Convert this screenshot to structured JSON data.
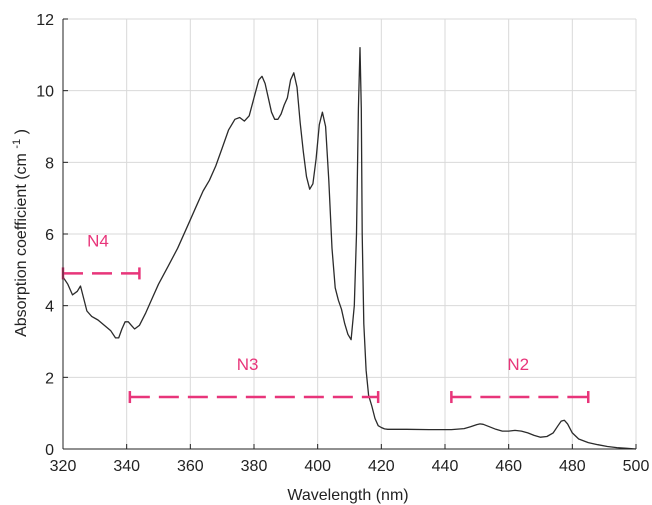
{
  "chart_data": {
    "type": "line",
    "title": "",
    "xlabel": "Wavelength (nm)",
    "ylabel_parts": {
      "main": "Absorption coefficient (cm",
      "sup": "-1",
      "close": ")"
    },
    "xlim": [
      320,
      500
    ],
    "ylim": [
      0,
      12
    ],
    "xticks": [
      320,
      340,
      360,
      380,
      400,
      420,
      440,
      460,
      480,
      500
    ],
    "yticks": [
      0,
      2,
      4,
      6,
      8,
      10,
      12
    ],
    "xtick_labels": [
      "320",
      "340",
      "360",
      "380",
      "400",
      "420",
      "440",
      "460",
      "480",
      "500"
    ],
    "ytick_labels": [
      "0",
      "2",
      "4",
      "6",
      "8",
      "10",
      "12"
    ],
    "grid": true,
    "colors": {
      "curve": "#2b2b2b",
      "annotation": "#e8357a",
      "grid": "#d9d9d9",
      "axis": "#222222"
    },
    "series": [
      {
        "x": [
          320,
          321.5,
          323,
          324.5,
          325.5,
          326.5,
          327.5,
          329,
          331,
          333,
          335,
          336.5,
          337.5,
          338.5,
          339.5,
          340.5,
          341.5,
          342.5,
          344,
          346,
          348,
          350,
          353,
          356,
          359,
          362,
          364,
          366,
          368,
          370,
          372,
          374,
          375.5,
          377,
          378.5,
          380,
          381.5,
          382.5,
          383.5,
          384.5,
          385.5,
          386.5,
          387.5,
          388.5,
          389.5,
          390.5,
          391.5,
          392.5,
          393.5,
          394.5,
          395.5,
          396.5,
          397.5,
          398.5,
          399.5,
          400.5,
          401.5,
          402.5,
          403.5,
          404.5,
          405.5,
          406.5,
          407.5,
          408.5,
          409.5,
          410.5,
          411.5,
          412.2,
          412.8,
          413.3,
          413.7,
          414.0,
          414.5,
          415.2,
          416.0,
          417,
          418,
          419,
          420,
          421,
          422,
          424,
          428,
          435,
          442,
          446,
          448,
          450,
          451,
          452,
          454,
          456,
          458,
          460,
          462,
          464,
          466,
          468,
          470,
          472,
          474,
          475.5,
          476.5,
          477.5,
          478.5,
          480,
          482,
          485,
          488,
          491,
          494,
          497,
          500
        ],
        "y": [
          4.8,
          4.6,
          4.3,
          4.4,
          4.55,
          4.2,
          3.85,
          3.7,
          3.6,
          3.45,
          3.3,
          3.1,
          3.1,
          3.35,
          3.55,
          3.55,
          3.45,
          3.35,
          3.45,
          3.8,
          4.2,
          4.6,
          5.1,
          5.6,
          6.2,
          6.8,
          7.2,
          7.5,
          7.9,
          8.4,
          8.9,
          9.2,
          9.25,
          9.15,
          9.3,
          9.8,
          10.3,
          10.4,
          10.2,
          9.8,
          9.4,
          9.2,
          9.2,
          9.35,
          9.6,
          9.8,
          10.3,
          10.5,
          10.1,
          9.1,
          8.3,
          7.6,
          7.25,
          7.4,
          8.1,
          9.05,
          9.4,
          9.0,
          7.5,
          5.6,
          4.5,
          4.15,
          3.9,
          3.5,
          3.2,
          3.05,
          4.0,
          6.0,
          9.5,
          11.2,
          9.5,
          6.0,
          3.5,
          2.2,
          1.5,
          1.2,
          0.85,
          0.65,
          0.6,
          0.56,
          0.55,
          0.55,
          0.55,
          0.54,
          0.54,
          0.57,
          0.62,
          0.68,
          0.7,
          0.69,
          0.62,
          0.55,
          0.5,
          0.5,
          0.52,
          0.5,
          0.45,
          0.38,
          0.33,
          0.35,
          0.45,
          0.65,
          0.78,
          0.8,
          0.7,
          0.45,
          0.28,
          0.18,
          0.12,
          0.07,
          0.04,
          0.02,
          0.0
        ]
      }
    ],
    "annotations": [
      {
        "label": "N4",
        "x0": 320,
        "x1": 344,
        "y": 4.9,
        "label_x": 331,
        "label_y": 5.65
      },
      {
        "label": "N3",
        "x0": 341,
        "x1": 419,
        "y": 1.45,
        "label_x": 378,
        "label_y": 2.2
      },
      {
        "label": "N2",
        "x0": 442,
        "x1": 485,
        "y": 1.45,
        "label_x": 463,
        "label_y": 2.2
      }
    ]
  }
}
